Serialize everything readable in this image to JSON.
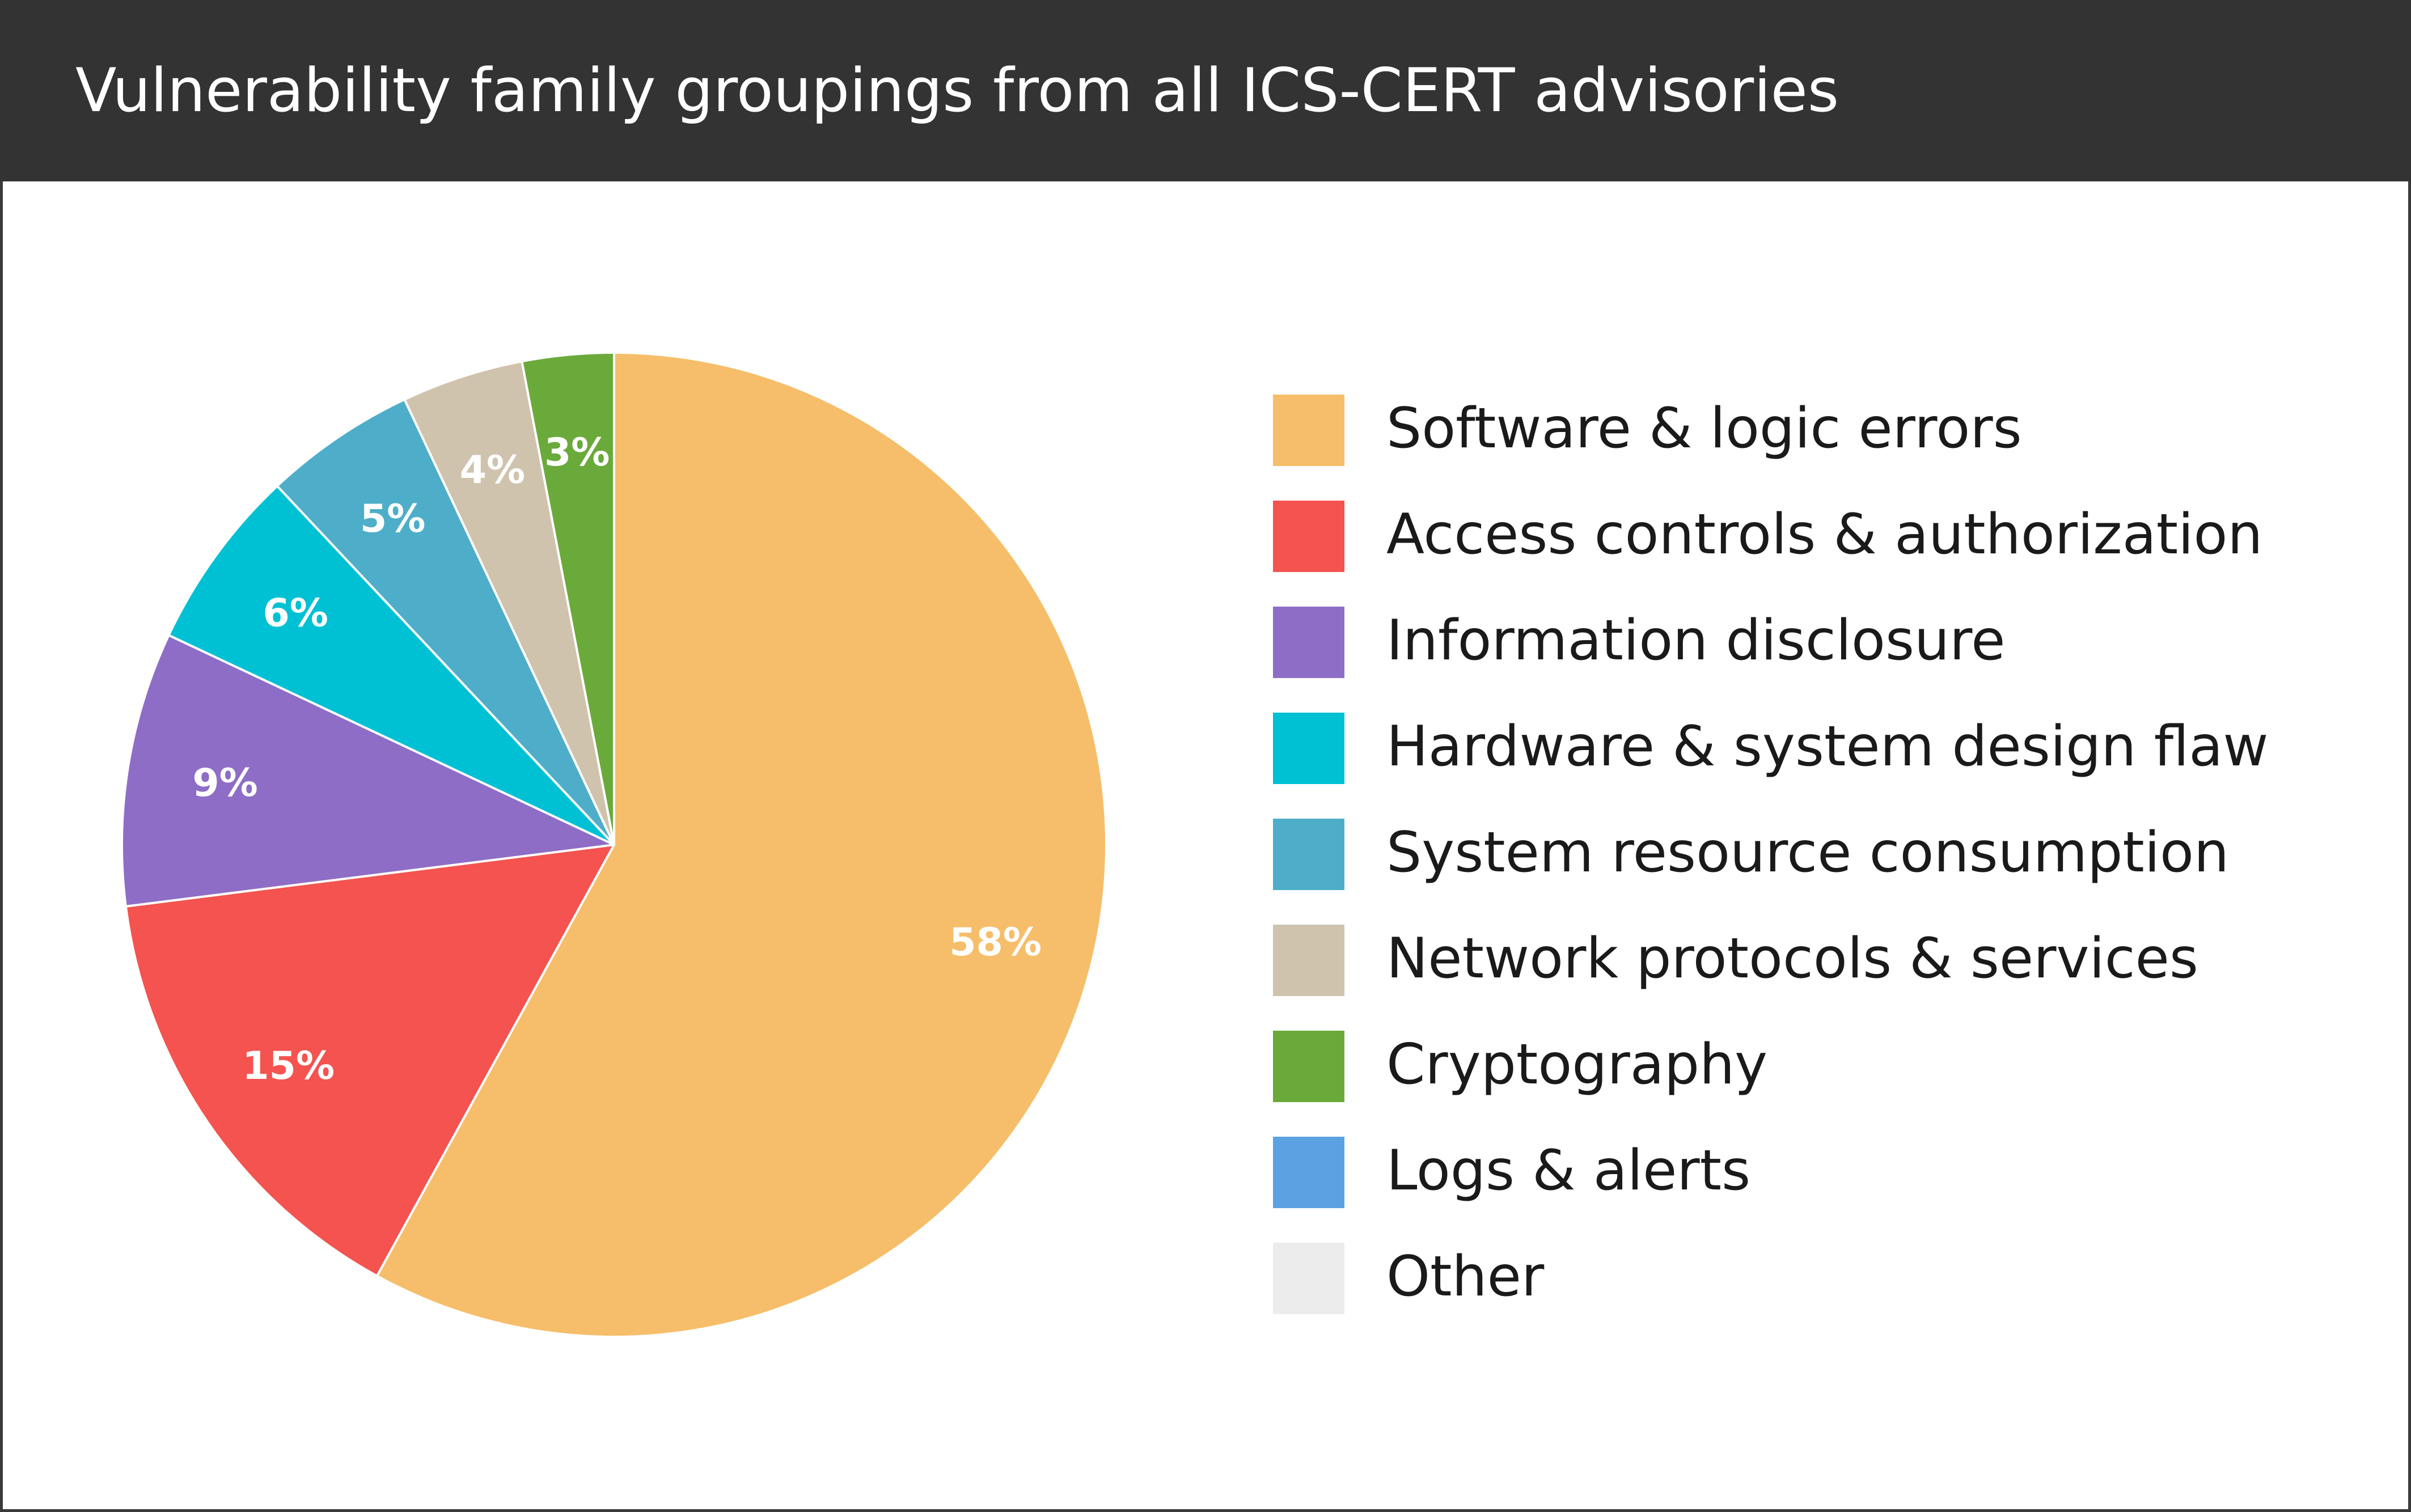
{
  "header": {
    "title": "Vulnerability family groupings from all ICS-CERT advisories"
  },
  "colors": {
    "header_bg": "#333333",
    "border": "#3a3a3a",
    "slice_stroke": "#ffffff"
  },
  "chart_data": {
    "type": "pie",
    "title": "Vulnerability family groupings from all ICS-CERT advisories",
    "legend_position": "right",
    "start_angle": "12 o'clock",
    "direction": "clockwise",
    "slices": [
      {
        "name": "Software & logic errors",
        "value": 58,
        "label": "58%",
        "color": "#f6be6a"
      },
      {
        "name": "Access controls & authorization",
        "value": 15,
        "label": "15%",
        "color": "#f4534f"
      },
      {
        "name": "Information disclosure",
        "value": 9,
        "label": "9%",
        "color": "#8e6dc6"
      },
      {
        "name": "Hardware & system design flaw",
        "value": 6,
        "label": "6%",
        "color": "#00c1d4"
      },
      {
        "name": "System resource consumption",
        "value": 5,
        "label": "5%",
        "color": "#4eaec9"
      },
      {
        "name": "Network protocols & services",
        "value": 4,
        "label": "4%",
        "color": "#d0c3ad"
      },
      {
        "name": "Cryptography",
        "value": 3,
        "label": "3%",
        "color": "#6aaa3b"
      },
      {
        "name": "Logs & alerts",
        "value": 0,
        "label": "",
        "color": "#5ba2e2"
      },
      {
        "name": "Other",
        "value": 0,
        "label": "",
        "color": "#ececec"
      }
    ]
  }
}
